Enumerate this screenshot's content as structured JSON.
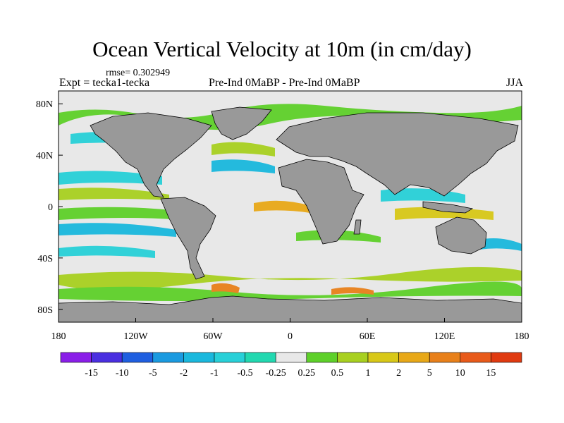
{
  "title": "Ocean Vertical Velocity at 10m (in cm/day)",
  "rmse": "rmse= 0.302949",
  "expt": "Expt = tecka1-tecka",
  "subtitle": "Pre-Ind 0MaBP - Pre-Ind 0MaBP",
  "season": "JJA",
  "map": {
    "projection": "cylindrical-equidistant",
    "lon_range": [
      -180,
      180
    ],
    "lat_range": [
      -90,
      90
    ],
    "y_ticks": [
      {
        "lat": 80,
        "label": "80N"
      },
      {
        "lat": 40,
        "label": "40N"
      },
      {
        "lat": 0,
        "label": "0"
      },
      {
        "lat": -40,
        "label": "40S"
      },
      {
        "lat": -80,
        "label": "80S"
      }
    ],
    "x_ticks": [
      {
        "lon": -180,
        "label": "180"
      },
      {
        "lon": -120,
        "label": "120W"
      },
      {
        "lon": -60,
        "label": "60W"
      },
      {
        "lon": 0,
        "label": "0"
      },
      {
        "lon": 60,
        "label": "60E"
      },
      {
        "lon": 120,
        "label": "120E"
      },
      {
        "lon": 180,
        "label": "180"
      }
    ],
    "ocean_color": "#e8e8e8",
    "land_color": "#999999"
  },
  "colorbar": {
    "labels": [
      "-15",
      "-10",
      "-5",
      "-2",
      "-1",
      "-0.5",
      "-0.25",
      "0.25",
      "0.5",
      "1",
      "2",
      "5",
      "10",
      "15"
    ],
    "colors": [
      "#8a1ee8",
      "#4a2fe0",
      "#1f5fe0",
      "#1a9ae0",
      "#1ab8dd",
      "#28d0d8",
      "#22d8b0",
      "#e8e8e8",
      "#5ed02a",
      "#a8d020",
      "#d8c818",
      "#e8a818",
      "#e8801a",
      "#e85a1a",
      "#e03a10"
    ]
  }
}
